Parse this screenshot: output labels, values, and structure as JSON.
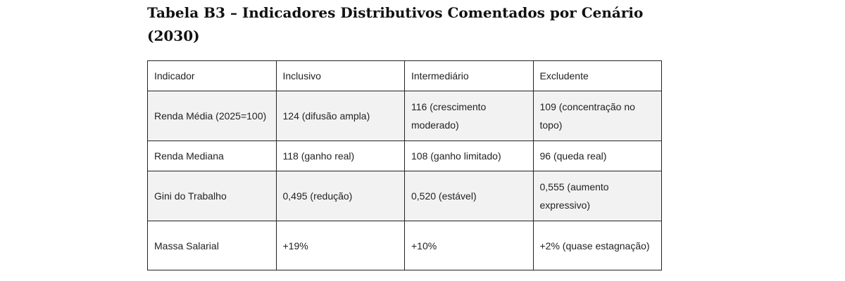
{
  "title": "Tabela B3 – Indicadores Distributivos Comentados por Cenário (2030)",
  "table": {
    "headers": [
      "Indicador",
      "Inclusivo",
      "Intermediário",
      "Excludente"
    ],
    "rows": [
      [
        "Renda Média (2025=100)",
        "124 (difusão ampla)",
        "116 (crescimento moderado)",
        "109 (concentração no topo)"
      ],
      [
        "Renda Mediana",
        "118 (ganho real)",
        "108 (ganho limitado)",
        "96 (queda real)"
      ],
      [
        "Gini do Trabalho",
        "0,495 (redução)",
        "0,520 (estável)",
        "0,555 (aumento expressivo)"
      ],
      [
        "Massa Salarial",
        "+19%",
        "+10%",
        "+2% (quase estagnação)"
      ]
    ]
  }
}
